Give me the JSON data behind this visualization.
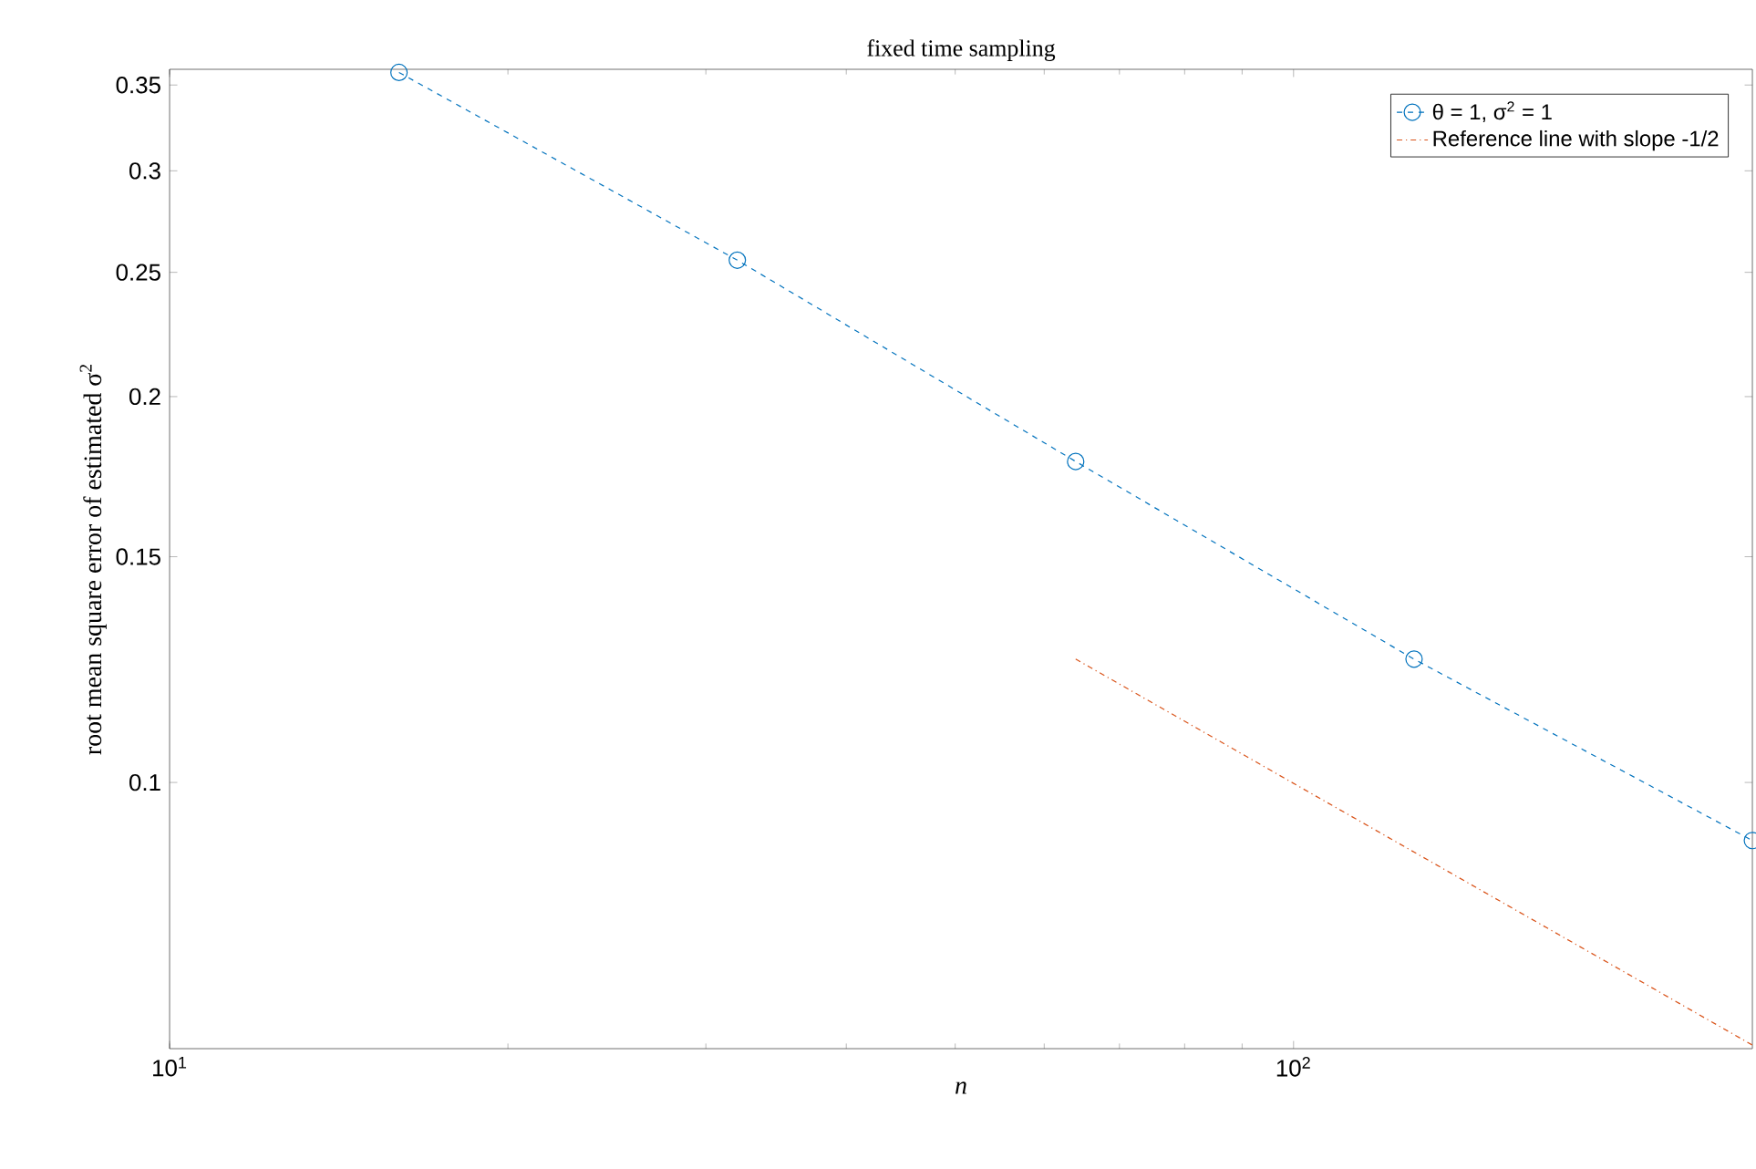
{
  "chart_data": {
    "type": "line",
    "title": "fixed time sampling",
    "xlabel": "n",
    "ylabel": "root mean square error of estimated σ$^{2}$",
    "log": "xy",
    "xlim": [
      10,
      256
    ],
    "ylim": [
      0.062,
      0.36
    ],
    "xticks": [
      {
        "value": 10,
        "label": "10$^{1}$"
      },
      {
        "value": 100,
        "label": "10$^{2}$"
      }
    ],
    "yticks": [
      0.1,
      0.15,
      0.2,
      0.25,
      0.3,
      0.35
    ],
    "legend": "top right",
    "grid": false,
    "series": [
      {
        "name": "θ =  1, σ$^{2}$ = 1",
        "color": "#0072bd",
        "x": [
          16,
          32,
          64,
          128,
          256
        ],
        "values": [
          0.358,
          0.2555,
          0.178,
          0.1248,
          0.0901
        ],
        "marker": "circle",
        "line_style": "dashed"
      },
      {
        "name": "Reference line with slope -1/2",
        "color": "#d95319",
        "x": [
          64,
          256
        ],
        "values": [
          0.1248,
          0.0624
        ],
        "marker": "none",
        "line_style": "dashdot"
      }
    ]
  }
}
